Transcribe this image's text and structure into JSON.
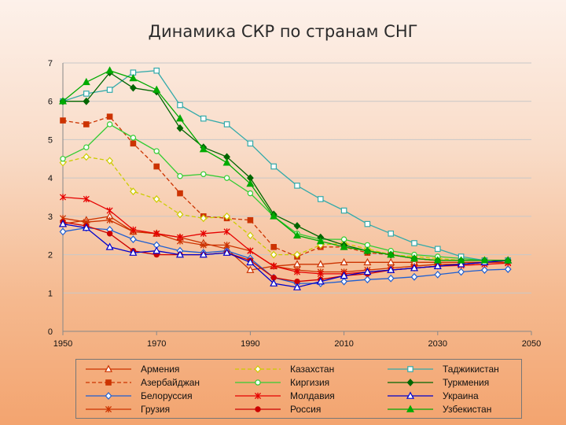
{
  "chart_data": {
    "type": "line",
    "title": "Динамика СКР по странам СНГ",
    "xlabel": "",
    "ylabel": "",
    "xlim": [
      1950,
      2050
    ],
    "ylim": [
      0,
      7
    ],
    "x_ticks": [
      1950,
      1970,
      1990,
      2010,
      2030,
      2050
    ],
    "y_ticks": [
      0,
      1,
      2,
      3,
      4,
      5,
      6,
      7
    ],
    "grid": "horizontal",
    "legend_position": "bottom",
    "series": [
      {
        "name": "Армения",
        "color": "#cc3300",
        "dash": "solid",
        "marker": "triangle-open",
        "x": [
          1950,
          1955,
          1960,
          1965,
          1970,
          1975,
          1980,
          1985,
          1990,
          1995,
          2000,
          2005,
          2010,
          2015,
          2020,
          2025,
          2030,
          2035,
          2040,
          2045
        ],
        "y": [
          2.8,
          2.9,
          3.0,
          2.6,
          2.55,
          2.45,
          2.3,
          2.15,
          1.6,
          1.7,
          1.75,
          1.75,
          1.8,
          1.8,
          1.8,
          1.8,
          1.8,
          1.8,
          1.8,
          1.85
        ]
      },
      {
        "name": "Азербайджан",
        "color": "#cc3300",
        "dash": "dashed",
        "marker": "square-filled",
        "x": [
          1950,
          1955,
          1960,
          1965,
          1970,
          1975,
          1980,
          1985,
          1990,
          1995,
          2000,
          2005,
          2010,
          2015,
          2020,
          2025,
          2030,
          2035,
          2040,
          2045
        ],
        "y": [
          5.5,
          5.4,
          5.6,
          4.9,
          4.3,
          3.6,
          3.0,
          2.95,
          2.9,
          2.2,
          1.95,
          2.2,
          2.2,
          2.05,
          2.0,
          1.9,
          1.85,
          1.85,
          1.85,
          1.85
        ]
      },
      {
        "name": "Белоруссия",
        "color": "#1f5fd1",
        "dash": "solid",
        "marker": "diamond-open",
        "x": [
          1950,
          1955,
          1960,
          1965,
          1970,
          1975,
          1980,
          1985,
          1990,
          1995,
          2000,
          2005,
          2010,
          2015,
          2020,
          2025,
          2030,
          2035,
          2040,
          2045
        ],
        "y": [
          2.6,
          2.7,
          2.65,
          2.4,
          2.25,
          2.1,
          2.05,
          2.1,
          1.9,
          1.4,
          1.25,
          1.25,
          1.3,
          1.35,
          1.38,
          1.42,
          1.48,
          1.55,
          1.6,
          1.62
        ]
      },
      {
        "name": "Грузия",
        "color": "#cc3300",
        "dash": "solid",
        "marker": "star",
        "x": [
          1950,
          1955,
          1960,
          1965,
          1970,
          1975,
          1980,
          1985,
          1990,
          1995,
          2000,
          2005,
          2010,
          2015,
          2020,
          2025,
          2030,
          2035,
          2040,
          2045
        ],
        "y": [
          2.95,
          2.85,
          2.9,
          2.6,
          2.55,
          2.35,
          2.25,
          2.25,
          2.1,
          1.7,
          1.6,
          1.55,
          1.55,
          1.6,
          1.65,
          1.7,
          1.75,
          1.75,
          1.8,
          1.8
        ]
      },
      {
        "name": "Казахстан",
        "color": "#cccc00",
        "dash": "dashed",
        "marker": "diamond-open",
        "x": [
          1950,
          1955,
          1960,
          1965,
          1970,
          1975,
          1980,
          1985,
          1990,
          1995,
          2000,
          2005,
          2010,
          2015,
          2020,
          2025,
          2030,
          2035,
          2040,
          2045
        ],
        "y": [
          4.4,
          4.55,
          4.45,
          3.65,
          3.45,
          3.05,
          2.95,
          3.0,
          2.5,
          2.0,
          2.0,
          2.25,
          2.3,
          2.15,
          2.0,
          1.95,
          1.9,
          1.85,
          1.85,
          1.85
        ]
      },
      {
        "name": "Киргизия",
        "color": "#33cc33",
        "dash": "solid",
        "marker": "circle-open",
        "x": [
          1950,
          1955,
          1960,
          1965,
          1970,
          1975,
          1980,
          1985,
          1990,
          1995,
          2000,
          2005,
          2010,
          2015,
          2020,
          2025,
          2030,
          2035,
          2040,
          2045
        ],
        "y": [
          4.5,
          4.8,
          5.4,
          5.05,
          4.7,
          4.05,
          4.1,
          4.0,
          3.6,
          3.0,
          2.55,
          2.4,
          2.4,
          2.25,
          2.1,
          2.0,
          1.95,
          1.9,
          1.85,
          1.85
        ]
      },
      {
        "name": "Молдавия",
        "color": "#e60000",
        "dash": "solid",
        "marker": "star",
        "x": [
          1950,
          1955,
          1960,
          1965,
          1970,
          1975,
          1980,
          1985,
          1990,
          1995,
          2000,
          2005,
          2010,
          2015,
          2020,
          2025,
          2030,
          2035,
          2040,
          2045
        ],
        "y": [
          3.5,
          3.45,
          3.15,
          2.65,
          2.55,
          2.45,
          2.55,
          2.6,
          2.1,
          1.7,
          1.55,
          1.5,
          1.5,
          1.55,
          1.6,
          1.65,
          1.7,
          1.72,
          1.75,
          1.78
        ]
      },
      {
        "name": "Россия",
        "color": "#cc0000",
        "dash": "solid",
        "marker": "circle-filled",
        "x": [
          1950,
          1955,
          1960,
          1965,
          1970,
          1975,
          1980,
          1985,
          1990,
          1995,
          2000,
          2005,
          2010,
          2015,
          2020,
          2025,
          2030,
          2035,
          2040,
          2045
        ],
        "y": [
          2.85,
          2.75,
          2.55,
          2.1,
          2.0,
          2.0,
          2.0,
          2.05,
          1.85,
          1.4,
          1.3,
          1.35,
          1.45,
          1.5,
          1.6,
          1.65,
          1.7,
          1.75,
          1.8,
          1.85
        ]
      },
      {
        "name": "Таджикистан",
        "color": "#33aaaa",
        "dash": "solid",
        "marker": "square-open",
        "x": [
          1950,
          1955,
          1960,
          1965,
          1970,
          1975,
          1980,
          1985,
          1990,
          1995,
          2000,
          2005,
          2010,
          2015,
          2020,
          2025,
          2030,
          2035,
          2040,
          2045
        ],
        "y": [
          6.0,
          6.2,
          6.3,
          6.75,
          6.8,
          5.9,
          5.55,
          5.4,
          4.9,
          4.3,
          3.8,
          3.45,
          3.15,
          2.8,
          2.55,
          2.3,
          2.15,
          1.95,
          1.85,
          1.85
        ]
      },
      {
        "name": "Туркмения",
        "color": "#006600",
        "dash": "solid",
        "marker": "diamond-filled",
        "x": [
          1950,
          1955,
          1960,
          1965,
          1970,
          1975,
          1980,
          1985,
          1990,
          1995,
          2000,
          2005,
          2010,
          2015,
          2020,
          2025,
          2030,
          2035,
          2040,
          2045
        ],
        "y": [
          6.0,
          6.0,
          6.75,
          6.35,
          6.25,
          5.3,
          4.8,
          4.55,
          4.0,
          3.05,
          2.75,
          2.45,
          2.25,
          2.1,
          2.0,
          1.9,
          1.85,
          1.85,
          1.85,
          1.85
        ]
      },
      {
        "name": "Украина",
        "color": "#0000cc",
        "dash": "solid",
        "marker": "triangle-open",
        "x": [
          1950,
          1955,
          1960,
          1965,
          1970,
          1975,
          1980,
          1985,
          1990,
          1995,
          2000,
          2005,
          2010,
          2015,
          2020,
          2025,
          2030,
          2035,
          2040,
          2045
        ],
        "y": [
          2.8,
          2.7,
          2.2,
          2.05,
          2.1,
          2.0,
          2.0,
          2.05,
          1.8,
          1.25,
          1.15,
          1.3,
          1.45,
          1.55,
          1.6,
          1.65,
          1.7,
          1.75,
          1.8,
          1.85
        ]
      },
      {
        "name": "Узбекистан",
        "color": "#00aa00",
        "dash": "solid",
        "marker": "triangle-filled",
        "x": [
          1950,
          1955,
          1960,
          1965,
          1970,
          1975,
          1980,
          1985,
          1990,
          1995,
          2000,
          2005,
          2010,
          2015,
          2020,
          2025,
          2030,
          2035,
          2040,
          2045
        ],
        "y": [
          6.0,
          6.5,
          6.8,
          6.6,
          6.3,
          5.55,
          4.75,
          4.4,
          3.85,
          3.0,
          2.5,
          2.35,
          2.2,
          2.1,
          2.0,
          1.9,
          1.85,
          1.85,
          1.85,
          1.85
        ]
      }
    ]
  }
}
